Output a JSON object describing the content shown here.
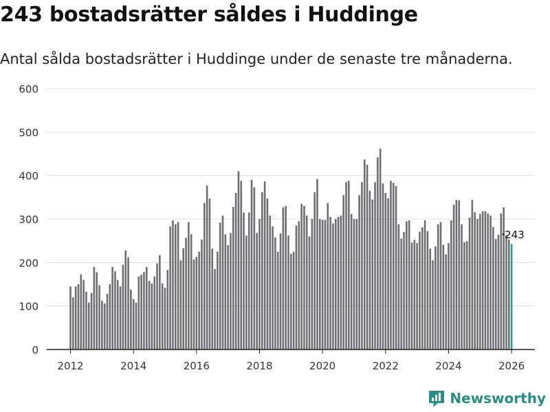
{
  "chart_title": "243 bostadsrätter såldes i Huddinge",
  "chart_subtitle": "Antal sålda bostadsrätter i Huddinge under de senaste tre månaderna.",
  "brand": "Newsworthy",
  "colors": {
    "bar": "#6e6d72",
    "highlight": "#2a9d8f",
    "grid": "#dddddd",
    "brand": "#2d8c84"
  },
  "chart_data": {
    "type": "bar",
    "title": "243 bostadsrätter såldes i Huddinge",
    "xlabel": "",
    "ylabel": "",
    "ylim": [
      0,
      600
    ],
    "yticks": [
      0,
      100,
      200,
      300,
      400,
      500,
      600
    ],
    "xticks": [
      "2012",
      "2014",
      "2016",
      "2018",
      "2020",
      "2022",
      "2024",
      "2026"
    ],
    "x_start": "2012-01",
    "frequency": "month",
    "values": [
      145,
      120,
      145,
      150,
      173,
      160,
      133,
      108,
      130,
      190,
      178,
      148,
      112,
      106,
      128,
      150,
      190,
      180,
      160,
      145,
      195,
      228,
      212,
      138,
      116,
      108,
      168,
      172,
      178,
      190,
      158,
      152,
      168,
      198,
      217,
      152,
      142,
      183,
      283,
      297,
      288,
      293,
      205,
      233,
      257,
      293,
      265,
      207,
      213,
      225,
      253,
      337,
      377,
      347,
      232,
      185,
      225,
      292,
      308,
      265,
      240,
      268,
      328,
      360,
      410,
      388,
      315,
      262,
      315,
      390,
      373,
      268,
      300,
      362,
      387,
      347,
      308,
      283,
      258,
      225,
      267,
      327,
      330,
      262,
      220,
      225,
      285,
      295,
      335,
      330,
      308,
      260,
      300,
      362,
      392,
      300,
      298,
      298,
      337,
      305,
      290,
      300,
      305,
      308,
      355,
      385,
      388,
      312,
      300,
      300,
      355,
      385,
      437,
      425,
      365,
      345,
      385,
      442,
      462,
      382,
      360,
      348,
      388,
      383,
      376,
      288,
      255,
      270,
      295,
      297,
      246,
      252,
      245,
      271,
      281,
      297,
      272,
      232,
      205,
      237,
      288,
      293,
      241,
      219,
      245,
      297,
      333,
      344,
      343,
      288,
      247,
      249,
      303,
      344,
      316,
      300,
      312,
      318,
      318,
      313,
      308,
      282,
      254,
      264,
      313,
      327,
      263,
      253,
      243
    ],
    "highlight_last": true,
    "annotations": [
      {
        "label": "243"
      }
    ]
  }
}
